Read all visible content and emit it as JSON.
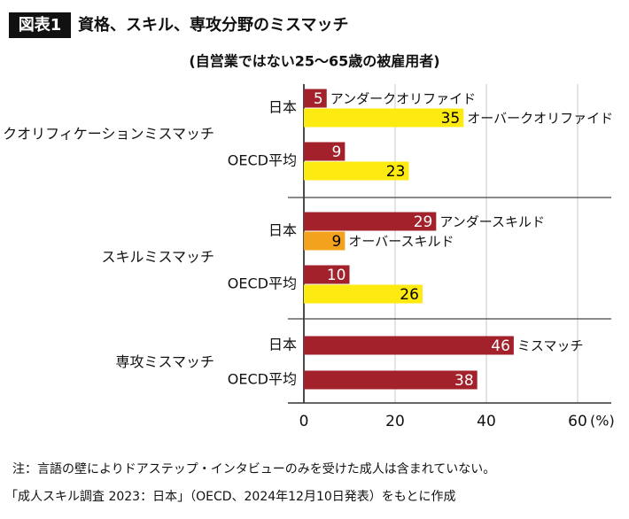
{
  "chart_data": {
    "type": "hbar-grouped",
    "badge": "図表1",
    "title": "資格、スキル、専攻分野のミスマッチ",
    "subtitle": "(自営業ではない25～65歳の被雇用者)",
    "xlim": [
      0,
      60
    ],
    "xticks": [
      0,
      20,
      40,
      60
    ],
    "xlabel": "(%)",
    "grid": true,
    "groups": [
      {
        "name": "クオリフィケーションミスマッチ",
        "rows": [
          {
            "label": "日本",
            "bars": [
              {
                "value": 5,
                "color": "#a2212b",
                "text_color": "#ffffff",
                "annotation": "アンダークオリファイド"
              },
              {
                "value": 35,
                "color": "#fcea10",
                "text_color": "#000000",
                "annotation": "オーバークオリファイド"
              }
            ]
          },
          {
            "label": "OECD平均",
            "bars": [
              {
                "value": 9,
                "color": "#a2212b",
                "text_color": "#ffffff"
              },
              {
                "value": 23,
                "color": "#fcea10",
                "text_color": "#000000"
              }
            ]
          }
        ]
      },
      {
        "name": "スキルミスマッチ",
        "rows": [
          {
            "label": "日本",
            "bars": [
              {
                "value": 29,
                "color": "#a2212b",
                "text_color": "#ffffff",
                "annotation": "アンダースキルド"
              },
              {
                "value": 9,
                "color": "#f3a21d",
                "text_color": "#000000",
                "annotation": "オーバースキルド"
              }
            ]
          },
          {
            "label": "OECD平均",
            "bars": [
              {
                "value": 10,
                "color": "#a2212b",
                "text_color": "#ffffff"
              },
              {
                "value": 26,
                "color": "#fcea10",
                "text_color": "#000000"
              }
            ]
          }
        ]
      },
      {
        "name": "専攻ミスマッチ",
        "rows": [
          {
            "label": "日本",
            "bars": [
              {
                "value": 46,
                "color": "#a2212b",
                "text_color": "#ffffff",
                "annotation": "ミスマッチ"
              }
            ]
          },
          {
            "label": "OECD平均",
            "bars": [
              {
                "value": 38,
                "color": "#a2212b",
                "text_color": "#ffffff"
              }
            ]
          }
        ]
      }
    ],
    "notes": [
      "注：言語の壁によりドアステップ・インタビューのみを受けた成人は含まれていない。",
      "「成人スキル調査 2023：日本」（OECD、2024年12月10日発表）をもとに作成"
    ]
  }
}
